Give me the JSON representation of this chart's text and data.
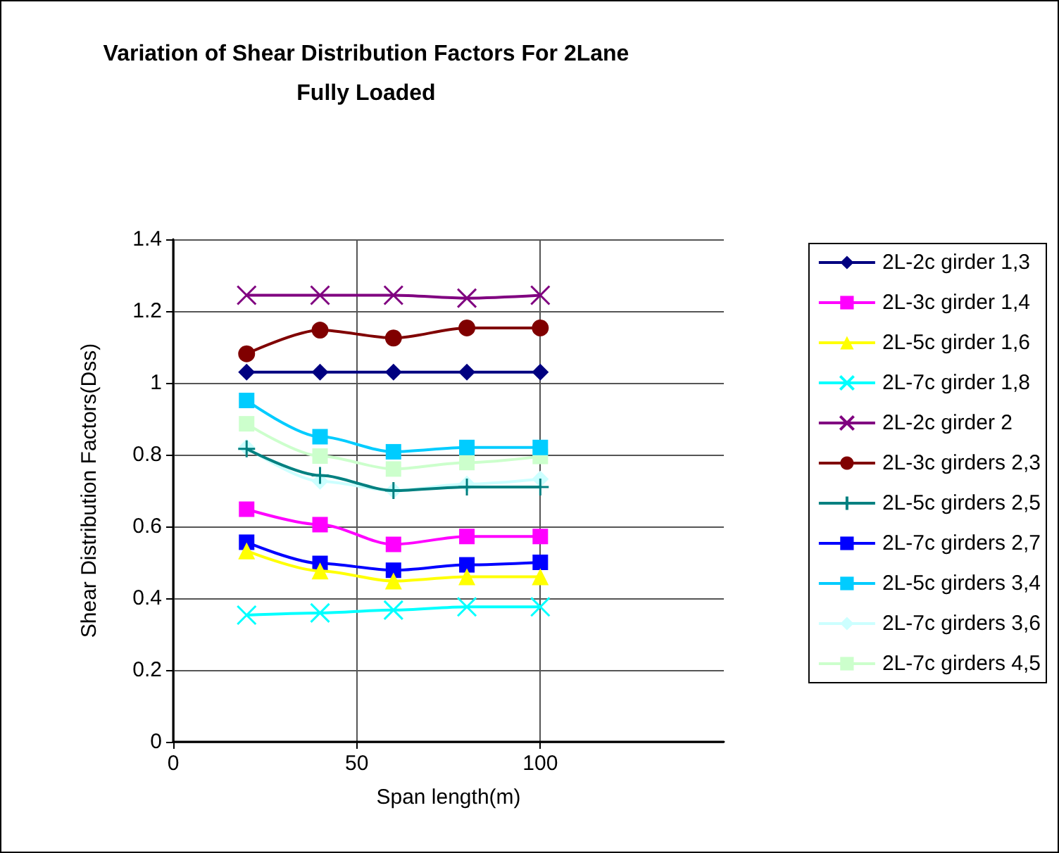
{
  "chart_data": {
    "type": "line",
    "title": "Variation of Shear Distribution Factors For 2Lane Fully Loaded",
    "xlabel": "Span length(m)",
    "ylabel": "Shear Distribution Factors(Dss)",
    "x": [
      20,
      40,
      60,
      80,
      100
    ],
    "xlim": [
      0,
      150
    ],
    "xticks": [
      0,
      50,
      100
    ],
    "ylim": [
      0,
      1.4
    ],
    "yticks": [
      0,
      0.2,
      0.4,
      0.6,
      0.8,
      1,
      1.2,
      1.4
    ],
    "grid": true,
    "legend": "right",
    "series": [
      {
        "name": "2L-2c girder 1,3",
        "color": "#000080",
        "marker": "diamond",
        "values": [
          1.03,
          1.03,
          1.03,
          1.03,
          1.03
        ]
      },
      {
        "name": "2L-3c girder 1,4",
        "color": "#ff00ff",
        "marker": "square",
        "values": [
          0.648,
          0.605,
          0.55,
          0.572,
          0.572
        ]
      },
      {
        "name": "2L-5c girder 1,6",
        "color": "#ffff00",
        "marker": "triangle",
        "values": [
          0.532,
          0.476,
          0.448,
          0.46,
          0.46
        ]
      },
      {
        "name": "2L-7c girder 1,8",
        "color": "#00ffff",
        "marker": "cross",
        "values": [
          0.353,
          0.359,
          0.367,
          0.376,
          0.376
        ]
      },
      {
        "name": "2L-2c girder 2",
        "color": "#800080",
        "marker": "cross",
        "values": [
          1.244,
          1.244,
          1.244,
          1.236,
          1.244
        ]
      },
      {
        "name": "2L-3c girders 2,3",
        "color": "#800000",
        "marker": "circle",
        "values": [
          1.081,
          1.147,
          1.125,
          1.153,
          1.153
        ]
      },
      {
        "name": "2L-5c girders 2,5",
        "color": "#008080",
        "marker": "plus",
        "values": [
          0.816,
          0.742,
          0.7,
          0.71,
          0.71
        ]
      },
      {
        "name": "2L-7c girders 2,7",
        "color": "#0000ff",
        "marker": "square",
        "values": [
          0.556,
          0.497,
          0.478,
          0.493,
          0.5
        ]
      },
      {
        "name": "2L-5c girders 3,4",
        "color": "#00ccff",
        "marker": "square",
        "values": [
          0.951,
          0.85,
          0.808,
          0.82,
          0.82
        ]
      },
      {
        "name": "2L-7c girders 3,6",
        "color": "#ccffff",
        "marker": "diamond",
        "values": [
          0.82,
          0.726,
          0.7,
          0.718,
          0.732
        ]
      },
      {
        "name": "2L-7c girders 4,5",
        "color": "#ccffcc",
        "marker": "square",
        "values": [
          0.886,
          0.796,
          0.76,
          0.778,
          0.795
        ]
      }
    ]
  }
}
